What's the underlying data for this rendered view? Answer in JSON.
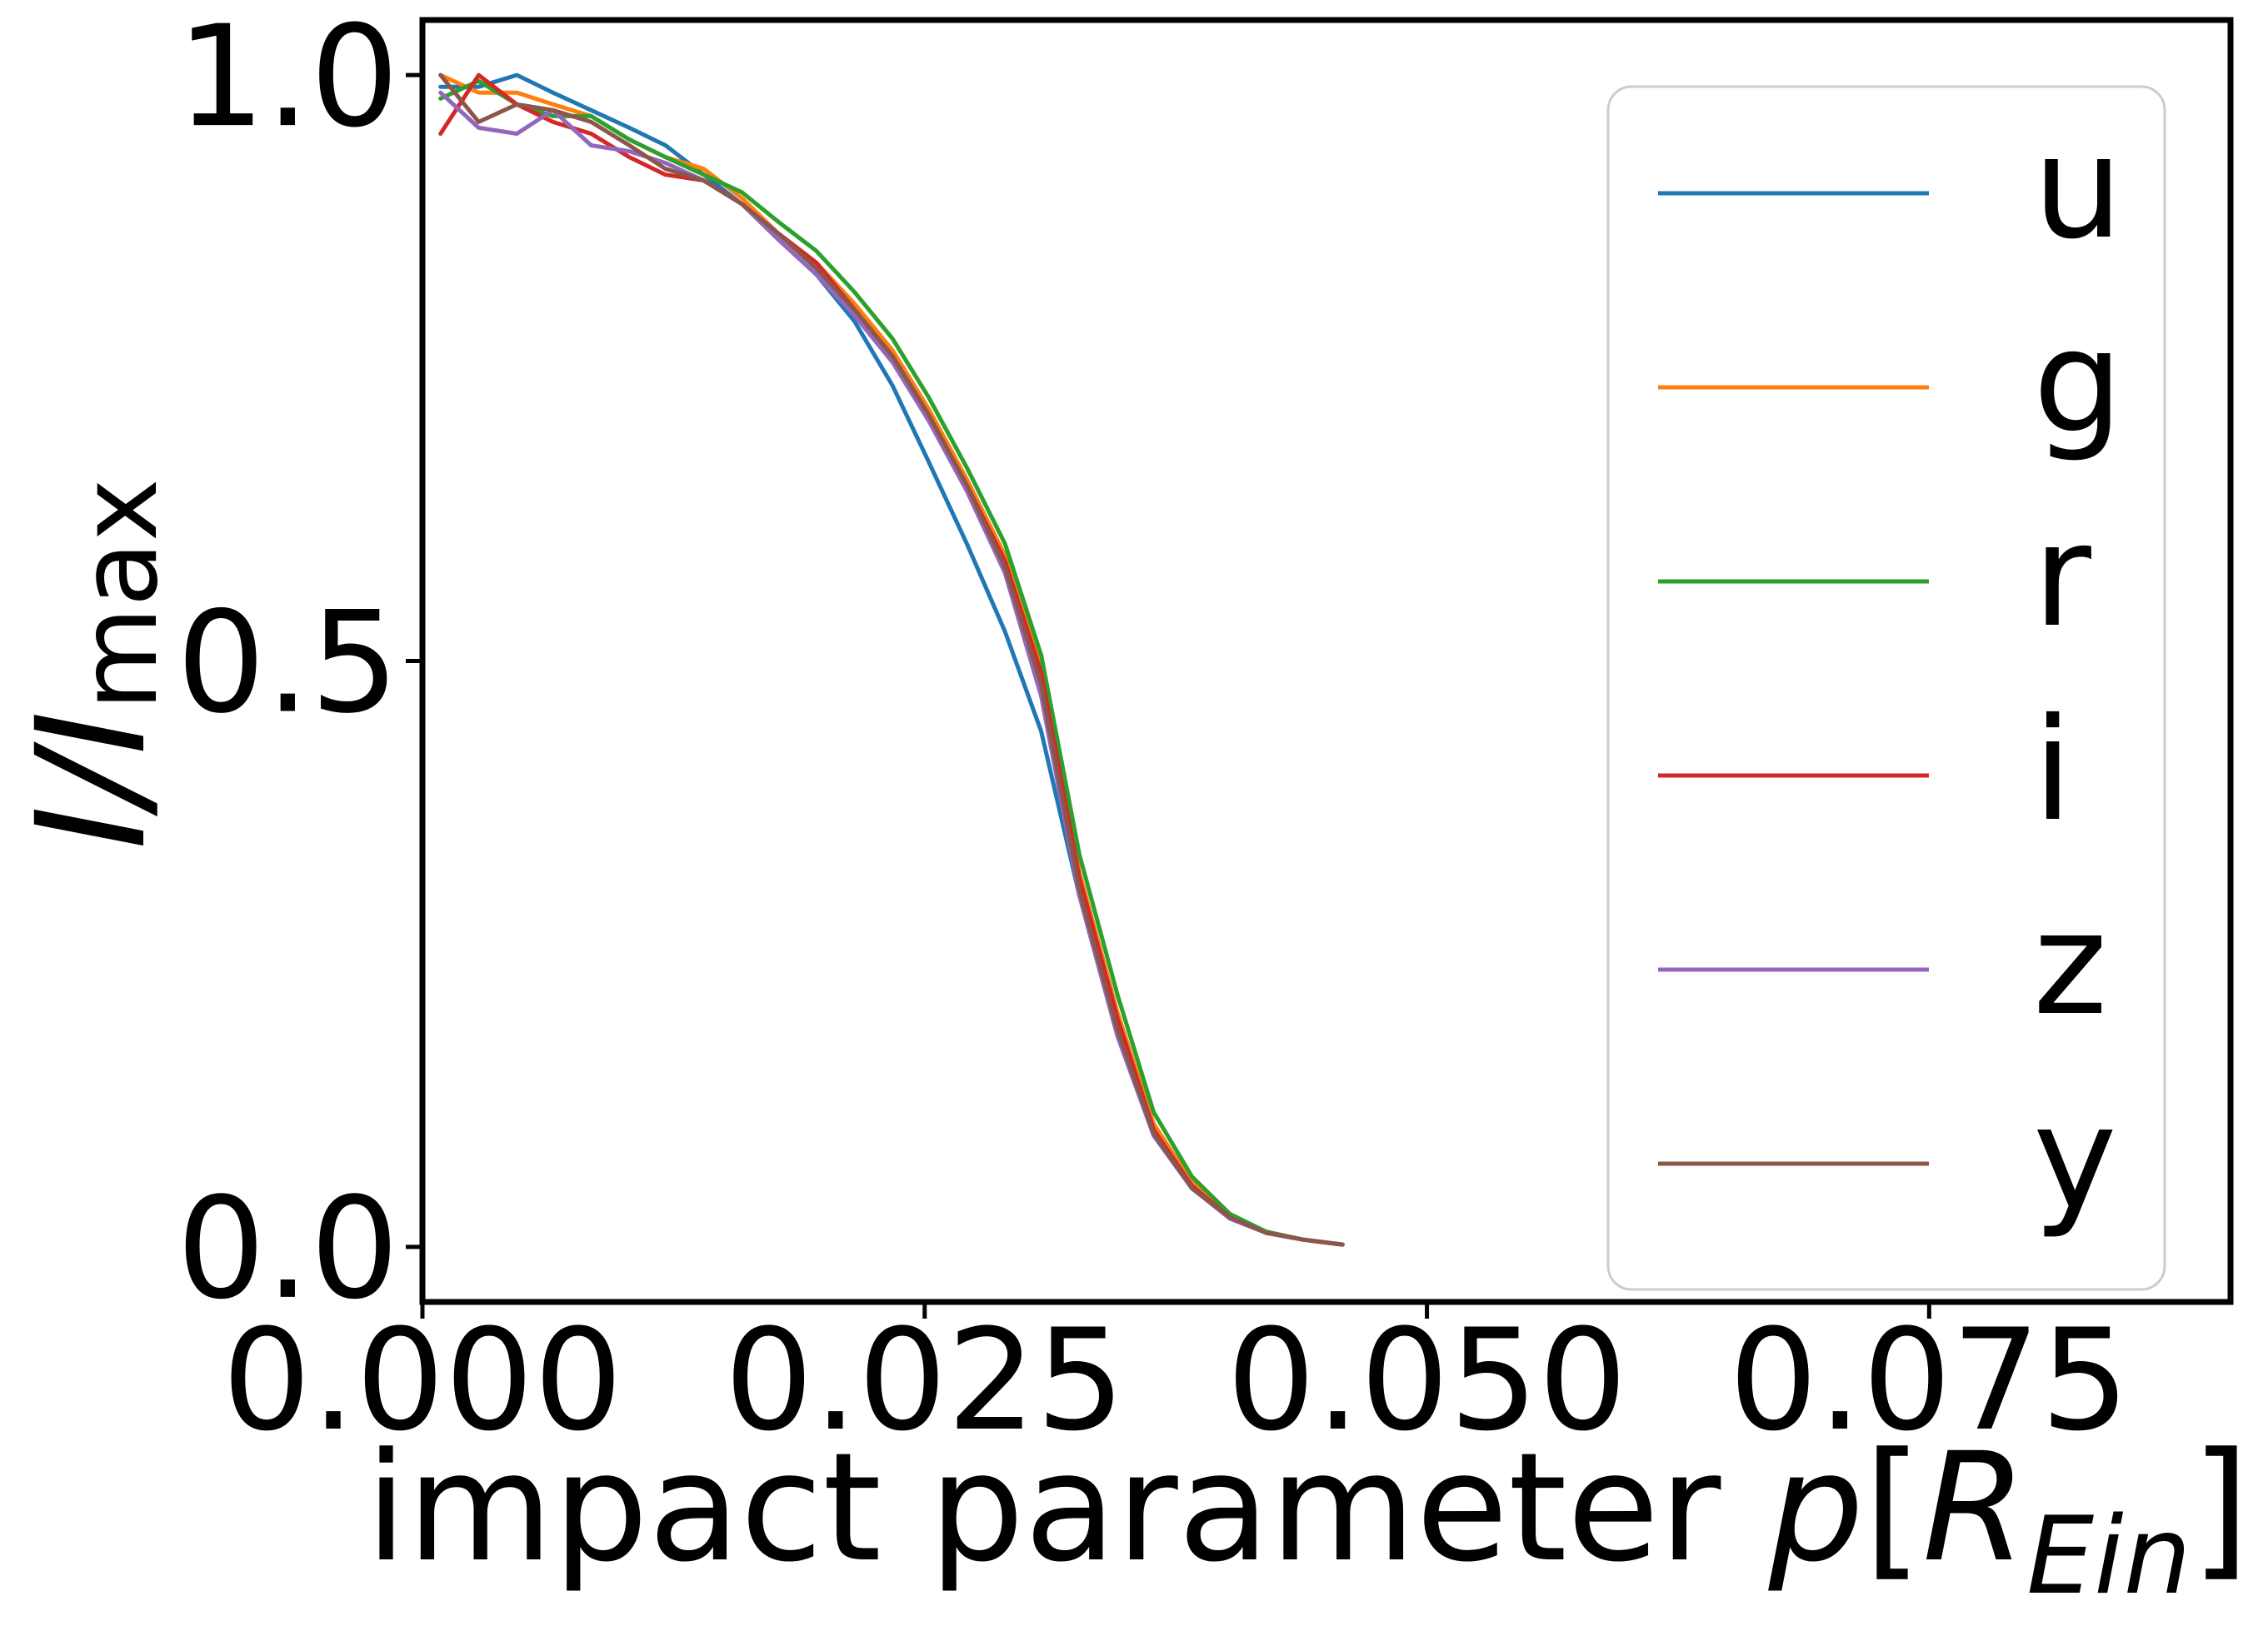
{
  "chart_data": {
    "type": "line",
    "title": "",
    "xlabel": {
      "text": "impact parameter ",
      "var": "p",
      "open": "[",
      "sym": "R",
      "sub": "Ein",
      "close": "]"
    },
    "ylabel": {
      "main": "I/I",
      "sub": "max"
    },
    "xlim": [
      0.0,
      0.09
    ],
    "ylim": [
      -0.047,
      1.047
    ],
    "xticks": [
      0.0,
      0.025,
      0.05,
      0.075
    ],
    "xtick_labels": [
      "0.000",
      "0.025",
      "0.050",
      "0.075"
    ],
    "yticks": [
      0.0,
      0.5,
      1.0
    ],
    "ytick_labels": [
      "0.0",
      "0.5",
      "1.0"
    ],
    "grid": false,
    "legend_position": "right",
    "x": [
      0.0009,
      0.0028,
      0.0047,
      0.0065,
      0.0084,
      0.0103,
      0.0121,
      0.014,
      0.0159,
      0.0177,
      0.0196,
      0.0215,
      0.0234,
      0.0252,
      0.0271,
      0.029,
      0.0308,
      0.0327,
      0.0346,
      0.0364,
      0.0383,
      0.0402,
      0.042,
      0.0439,
      0.0458
    ],
    "series": [
      {
        "name": "u",
        "color": "#1f77b4",
        "values": [
          0.99,
          0.99,
          1.0,
          0.985,
          0.97,
          0.955,
          0.94,
          0.915,
          0.89,
          0.86,
          0.83,
          0.79,
          0.735,
          0.67,
          0.6,
          0.525,
          0.44,
          0.3,
          0.18,
          0.095,
          0.05,
          0.025,
          0.012,
          0.006,
          0.002
        ]
      },
      {
        "name": "g",
        "color": "#ff7f0e",
        "values": [
          1.0,
          0.985,
          0.985,
          0.975,
          0.965,
          0.945,
          0.93,
          0.92,
          0.895,
          0.865,
          0.84,
          0.805,
          0.765,
          0.715,
          0.655,
          0.59,
          0.5,
          0.32,
          0.2,
          0.105,
          0.055,
          0.025,
          0.012,
          0.006,
          0.002
        ]
      },
      {
        "name": "r",
        "color": "#2ca02c",
        "values": [
          0.98,
          0.995,
          0.975,
          0.965,
          0.965,
          0.945,
          0.93,
          0.915,
          0.9,
          0.875,
          0.85,
          0.815,
          0.775,
          0.725,
          0.665,
          0.6,
          0.505,
          0.335,
          0.215,
          0.115,
          0.06,
          0.028,
          0.013,
          0.006,
          0.002
        ]
      },
      {
        "name": "i",
        "color": "#d62728",
        "values": [
          0.95,
          1.0,
          0.975,
          0.96,
          0.95,
          0.93,
          0.915,
          0.91,
          0.89,
          0.865,
          0.84,
          0.8,
          0.76,
          0.71,
          0.65,
          0.585,
          0.49,
          0.315,
          0.195,
          0.1,
          0.052,
          0.025,
          0.012,
          0.006,
          0.002
        ]
      },
      {
        "name": "z",
        "color": "#9467bd",
        "values": [
          0.985,
          0.955,
          0.95,
          0.97,
          0.94,
          0.935,
          0.925,
          0.91,
          0.89,
          0.86,
          0.83,
          0.795,
          0.755,
          0.705,
          0.645,
          0.575,
          0.47,
          0.3,
          0.18,
          0.095,
          0.05,
          0.024,
          0.012,
          0.006,
          0.002
        ]
      },
      {
        "name": "y",
        "color": "#8c564b",
        "values": [
          1.0,
          0.96,
          0.975,
          0.97,
          0.96,
          0.94,
          0.92,
          0.91,
          0.89,
          0.865,
          0.835,
          0.8,
          0.76,
          0.71,
          0.65,
          0.58,
          0.48,
          0.305,
          0.185,
          0.097,
          0.05,
          0.025,
          0.012,
          0.006,
          0.002
        ]
      }
    ]
  }
}
